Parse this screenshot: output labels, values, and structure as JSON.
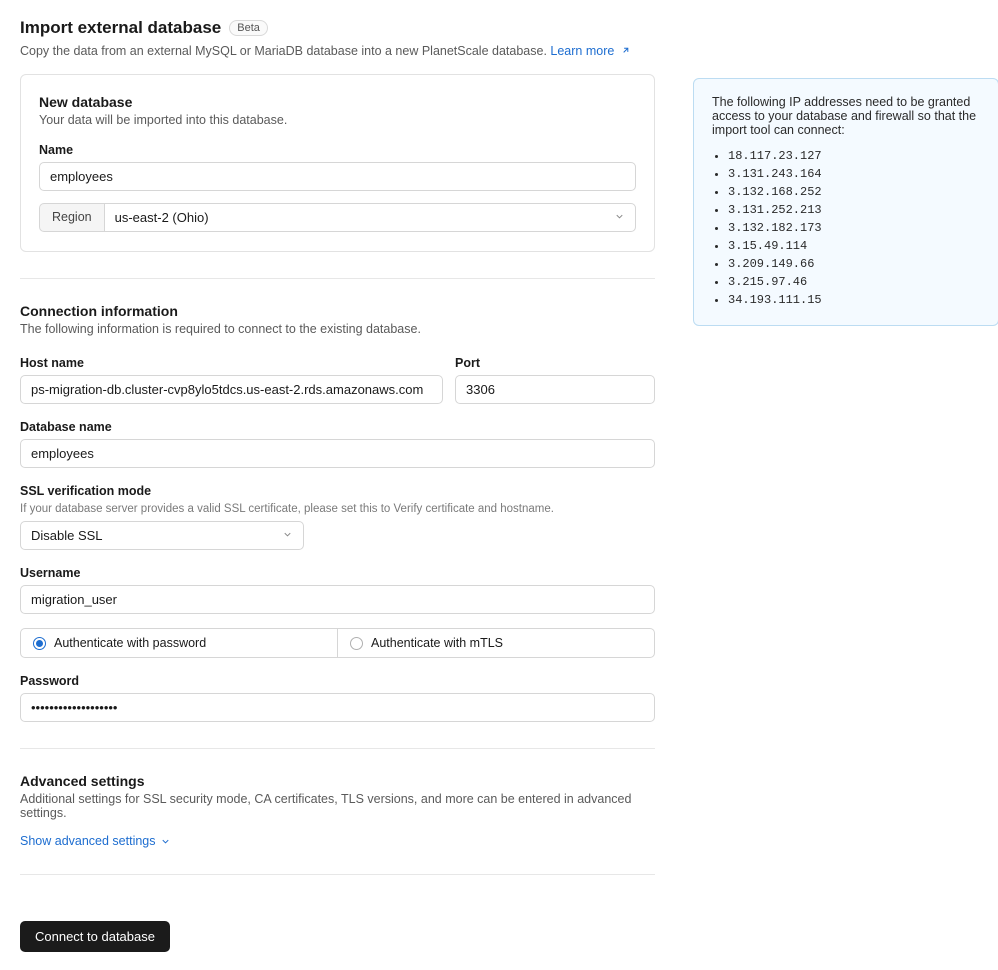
{
  "header": {
    "title": "Import external database",
    "badge": "Beta",
    "subtitle": "Copy the data from an external MySQL or MariaDB database into a new PlanetScale database.",
    "learn_more": "Learn more"
  },
  "new_db": {
    "heading": "New database",
    "sub": "Your data will be imported into this database.",
    "name_label": "Name",
    "name_value": "employees",
    "region_label": "Region",
    "region_value": "us-east-2 (Ohio)"
  },
  "conn": {
    "heading": "Connection information",
    "sub": "The following information is required to connect to the existing database.",
    "host_label": "Host name",
    "host_value": "ps-migration-db.cluster-cvp8ylo5tdcs.us-east-2.rds.amazonaws.com",
    "port_label": "Port",
    "port_value": "3306",
    "dbname_label": "Database name",
    "dbname_value": "employees",
    "ssl_label": "SSL verification mode",
    "ssl_hint": "If your database server provides a valid SSL certificate, please set this to Verify certificate and hostname.",
    "ssl_value": "Disable SSL",
    "user_label": "Username",
    "user_value": "migration_user",
    "auth_password_label": "Authenticate with password",
    "auth_mtls_label": "Authenticate with mTLS",
    "pass_label": "Password",
    "pass_value": "•••••••••••••••••••"
  },
  "adv": {
    "heading": "Advanced settings",
    "sub": "Additional settings for SSL security mode, CA certificates, TLS versions, and more can be entered in advanced settings.",
    "toggle": "Show advanced settings"
  },
  "submit": {
    "label": "Connect to database"
  },
  "ip": {
    "intro": "The following IP addresses need to be granted access to your database and firewall so that the import tool can connect:",
    "list": [
      "18.117.23.127",
      "3.131.243.164",
      "3.132.168.252",
      "3.131.252.213",
      "3.132.182.173",
      "3.15.49.114",
      "3.209.149.66",
      "3.215.97.46",
      "34.193.111.15"
    ]
  },
  "colors": {
    "link": "#1d6dd0",
    "border": "#d6d6d6",
    "ip_border": "#bcdcf2",
    "ip_bg": "#f4faff",
    "btn_bg": "#1b1b1b"
  }
}
